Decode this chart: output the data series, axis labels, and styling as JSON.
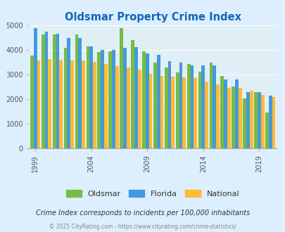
{
  "title": "Oldsmar Property Crime Index",
  "subtitle": "Crime Index corresponds to incidents per 100,000 inhabitants",
  "footer": "© 2025 CityRating.com - https://www.cityrating.com/crime-statistics/",
  "years": [
    1999,
    2000,
    2001,
    2002,
    2003,
    2004,
    2005,
    2006,
    2007,
    2008,
    2009,
    2010,
    2011,
    2012,
    2013,
    2014,
    2015,
    2016,
    2017,
    2018,
    2019,
    2020
  ],
  "oldsmar": [
    3780,
    4650,
    4630,
    4100,
    4630,
    4140,
    3920,
    3950,
    4900,
    4400,
    3950,
    3500,
    3300,
    3100,
    3430,
    3110,
    3480,
    2960,
    2530,
    2040,
    2290,
    1450
  ],
  "florida": [
    4900,
    4740,
    4660,
    4480,
    4490,
    4150,
    4000,
    4000,
    4080,
    4130,
    3870,
    3820,
    3540,
    3480,
    3380,
    3380,
    3390,
    2820,
    2810,
    2290,
    2280,
    2150
  ],
  "national": [
    3590,
    3650,
    3620,
    3580,
    3570,
    3510,
    3440,
    3340,
    3280,
    3220,
    3040,
    2960,
    2910,
    2880,
    2870,
    2720,
    2610,
    2460,
    2460,
    2360,
    2190,
    2100
  ],
  "bar_colors": {
    "oldsmar": "#77bb44",
    "florida": "#4499dd",
    "national": "#ffbb33"
  },
  "ylim": [
    0,
    5000
  ],
  "yticks": [
    0,
    1000,
    2000,
    3000,
    4000,
    5000
  ],
  "xticks": [
    1999,
    2004,
    2009,
    2014,
    2019
  ],
  "background_color": "#ddeeff",
  "plot_bg_color": "#e0eef5",
  "title_color": "#1166bb",
  "subtitle_color": "#333333",
  "footer_color": "#888888",
  "legend_labels": [
    "Oldsmar",
    "Florida",
    "National"
  ]
}
